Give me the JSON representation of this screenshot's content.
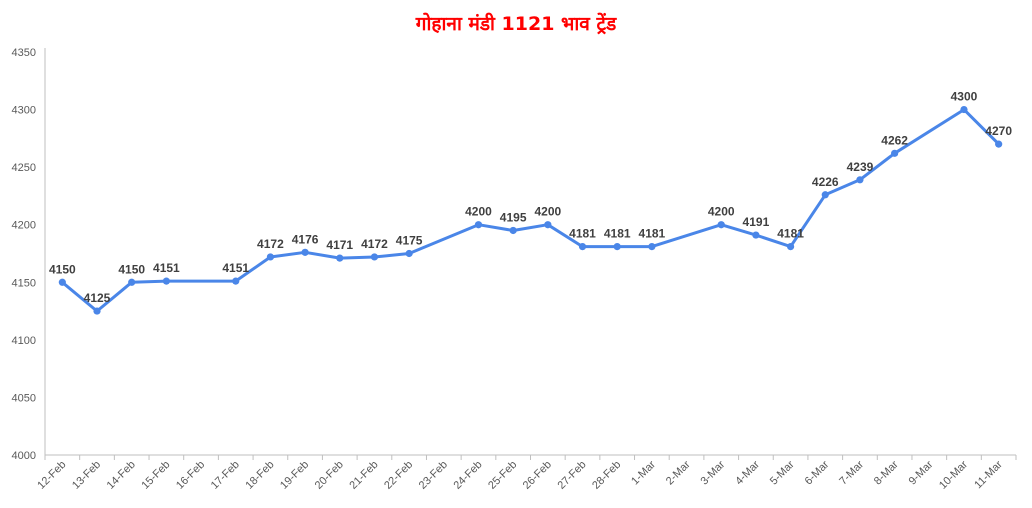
{
  "colors": {
    "line": "#4a86e8",
    "title": "#ff0000",
    "axis": "#bfbfbf"
  },
  "chart_data": {
    "type": "line",
    "title": "गोहाना मंडी 1121 भाव ट्रेंड",
    "xlabel": "",
    "ylabel": "",
    "ylim": [
      4000,
      4350
    ],
    "yticks": [
      4000,
      4050,
      4100,
      4150,
      4200,
      4250,
      4300,
      4350
    ],
    "grid": false,
    "categories": [
      "12-Feb",
      "13-Feb",
      "14-Feb",
      "15-Feb",
      "16-Feb",
      "17-Feb",
      "18-Feb",
      "19-Feb",
      "20-Feb",
      "21-Feb",
      "22-Feb",
      "23-Feb",
      "24-Feb",
      "25-Feb",
      "26-Feb",
      "27-Feb",
      "28-Feb",
      "1-Mar",
      "2-Mar",
      "3-Mar",
      "4-Mar",
      "5-Mar",
      "6-Mar",
      "7-Mar",
      "8-Mar",
      "9-Mar",
      "10-Mar",
      "11-Mar"
    ],
    "series": [
      {
        "values": [
          4150,
          4125,
          4150,
          4151,
          null,
          4151,
          4172,
          4176,
          4171,
          4172,
          4175,
          null,
          4200,
          4195,
          4200,
          4181,
          4181,
          4181,
          null,
          4200,
          4191,
          4181,
          4226,
          4239,
          4262,
          null,
          4300,
          4270
        ]
      }
    ]
  }
}
